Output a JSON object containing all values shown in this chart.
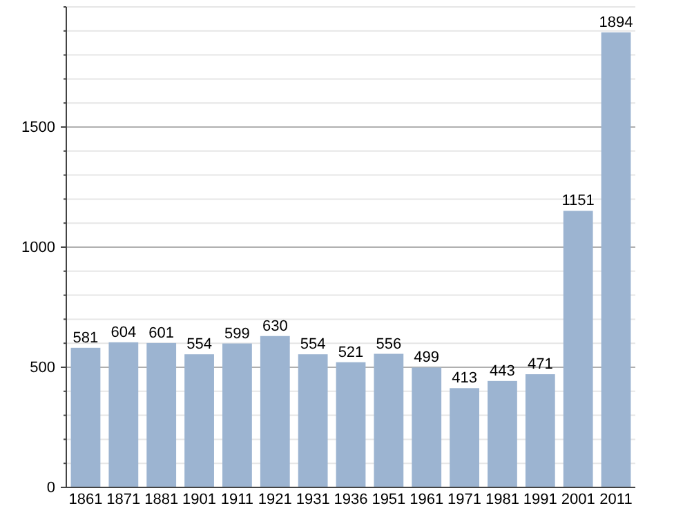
{
  "chart_data": {
    "type": "bar",
    "categories": [
      "1861",
      "1871",
      "1881",
      "1901",
      "1911",
      "1921",
      "1931",
      "1936",
      "1951",
      "1961",
      "1971",
      "1981",
      "1991",
      "2001",
      "2011"
    ],
    "values": [
      581,
      604,
      601,
      554,
      599,
      630,
      554,
      521,
      556,
      499,
      413,
      443,
      471,
      1151,
      1894
    ],
    "color": "#9cb4d1",
    "ylim": [
      0,
      2000
    ],
    "yticks": [
      0,
      {
        "value": 100,
        "label": null
      },
      {
        "value": 200,
        "label": null
      },
      {
        "value": 300,
        "label": null
      },
      {
        "value": 400,
        "label": null
      },
      500,
      {
        "value": 600,
        "label": null
      },
      {
        "value": 700,
        "label": null
      },
      {
        "value": 800,
        "label": null
      },
      {
        "value": 900,
        "label": null
      },
      1000,
      {
        "value": 1100,
        "label": null
      },
      {
        "value": 1200,
        "label": null
      },
      {
        "value": 1300,
        "label": null
      },
      {
        "value": 1400,
        "label": null
      },
      1500,
      {
        "value": 1600,
        "label": null
      },
      {
        "value": 1700,
        "label": null
      },
      {
        "value": 1800,
        "label": null
      },
      {
        "value": 1900,
        "label": null
      },
      {
        "value": 2000,
        "label": null
      }
    ],
    "grid": true,
    "data_labels": true
  }
}
